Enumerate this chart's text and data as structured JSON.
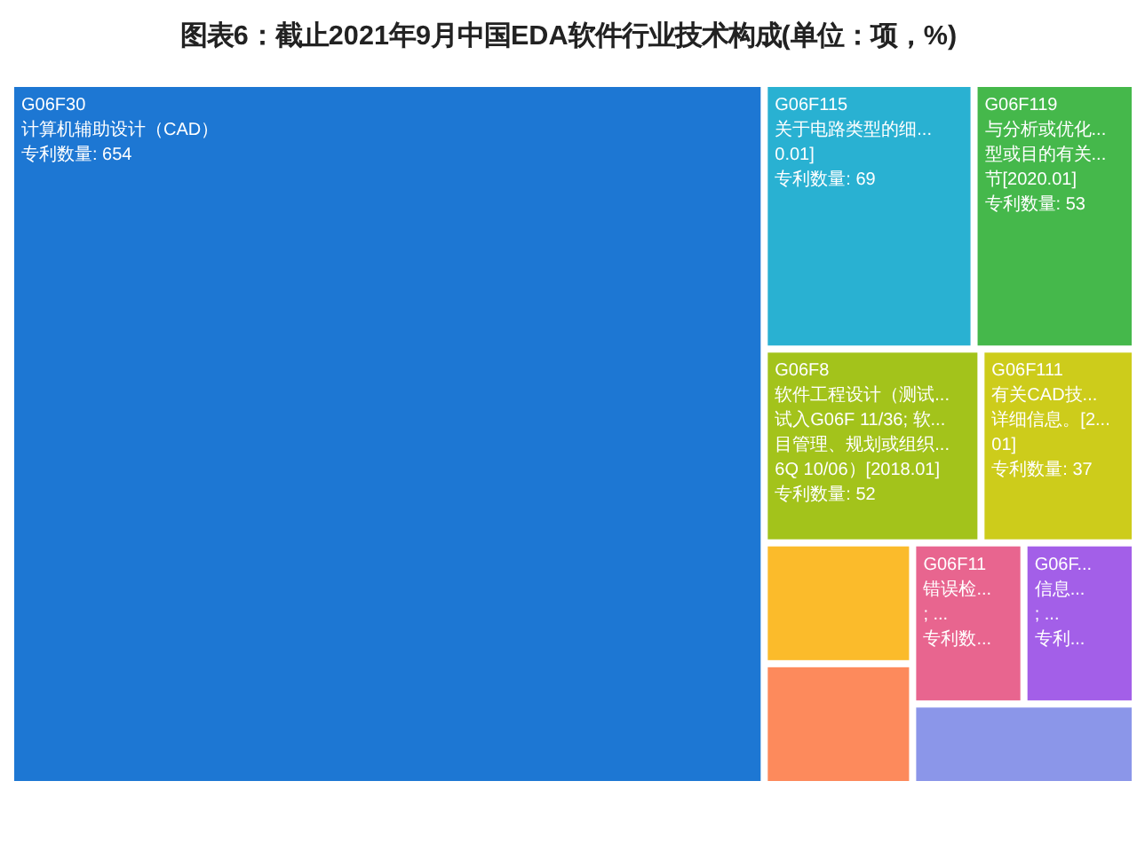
{
  "chart_data": {
    "type": "other",
    "title": "图表6：截止2021年9月中国EDA软件行业技术构成(单位：项，%)",
    "categories": [
      "G06F30\n计算机辅助设计（CAD）",
      "G06F115\n关于电路类型的细...\n0.01]",
      "G06F119\n与分析或优化...\n型或目的有关...\n节[2020.01]",
      "G06F8\n软件工程设计（测试...\n试入G06F 11/36; 软...\n目管理、规划或组织...\n6Q 10/06）[2018.01]",
      "G06F111\n有关CAD技...\n详细信息。[2...\n01]",
      null,
      null,
      "G06F11\n错误检...\n; ...",
      "G06F...\n信息...\n; ...",
      null
    ],
    "values": [
      654,
      69,
      53,
      52,
      37,
      null,
      null,
      null,
      null,
      null
    ],
    "value_labels": [
      "专利数量: 654",
      "专利数量: 69",
      "专利数量: 53",
      "专利数量: 52",
      "专利数量: 37",
      null,
      null,
      "专利数...",
      "专利...",
      null
    ],
    "colors": [
      "#1d77d3",
      "#29b1d2",
      "#45b84b",
      "#a3c31b",
      "#cdcc1b",
      "#fbbb2b",
      "#fd8a5c",
      "#e8658f",
      "#a35fe8",
      "#8b96e9"
    ]
  }
}
